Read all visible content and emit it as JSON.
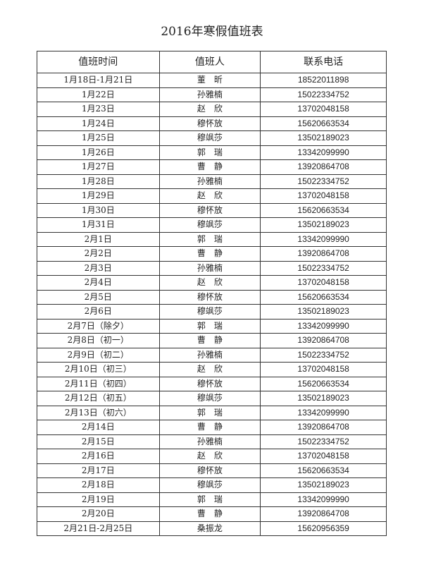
{
  "title": "2016年寒假值班表",
  "headers": [
    "值班时间",
    "值班人",
    "联系电话"
  ],
  "rows": [
    [
      "1月18日-1月21日",
      "董　昕",
      "18522011898"
    ],
    [
      "1月22日",
      "孙雅楠",
      "15022334752"
    ],
    [
      "1月23日",
      "赵　欣",
      "13702048158"
    ],
    [
      "1月24日",
      "穆怀放",
      "15620663534"
    ],
    [
      "1月25日",
      "穆飒莎",
      "13502189023"
    ],
    [
      "1月26日",
      "郭　瑞",
      "13342099990"
    ],
    [
      "1月27日",
      "曹　静",
      "13920864708"
    ],
    [
      "1月28日",
      "孙雅楠",
      "15022334752"
    ],
    [
      "1月29日",
      "赵　欣",
      "13702048158"
    ],
    [
      "1月30日",
      "穆怀放",
      "15620663534"
    ],
    [
      "1月31日",
      "穆飒莎",
      "13502189023"
    ],
    [
      "2月1日",
      "郭　瑞",
      "13342099990"
    ],
    [
      "2月2日",
      "曹　静",
      "13920864708"
    ],
    [
      "2月3日",
      "孙雅楠",
      "15022334752"
    ],
    [
      "2月4日",
      "赵　欣",
      "13702048158"
    ],
    [
      "2月5日",
      "穆怀放",
      "15620663534"
    ],
    [
      "2月6日",
      "穆飒莎",
      "13502189023"
    ],
    [
      "2月7日（除夕）",
      "郭　瑞",
      "13342099990"
    ],
    [
      "2月8日（初一）",
      "曹　静",
      "13920864708"
    ],
    [
      "2月9日（初二）",
      "孙雅楠",
      "15022334752"
    ],
    [
      "2月10日（初三）",
      "赵　欣",
      "13702048158"
    ],
    [
      "2月11日（初四）",
      "穆怀放",
      "15620663534"
    ],
    [
      "2月12日（初五）",
      "穆飒莎",
      "13502189023"
    ],
    [
      "2月13日（初六）",
      "郭　瑞",
      "13342099990"
    ],
    [
      "2月14日",
      "曹　静",
      "13920864708"
    ],
    [
      "2月15日",
      "孙雅楠",
      "15022334752"
    ],
    [
      "2月16日",
      "赵　欣",
      "13702048158"
    ],
    [
      "2月17日",
      "穆怀放",
      "15620663534"
    ],
    [
      "2月18日",
      "穆飒莎",
      "13502189023"
    ],
    [
      "2月19日",
      "郭　瑞",
      "13342099990"
    ],
    [
      "2月20日",
      "曹　静",
      "13920864708"
    ],
    [
      "2月21日-2月25日",
      "桑振龙",
      "15620956359"
    ]
  ]
}
